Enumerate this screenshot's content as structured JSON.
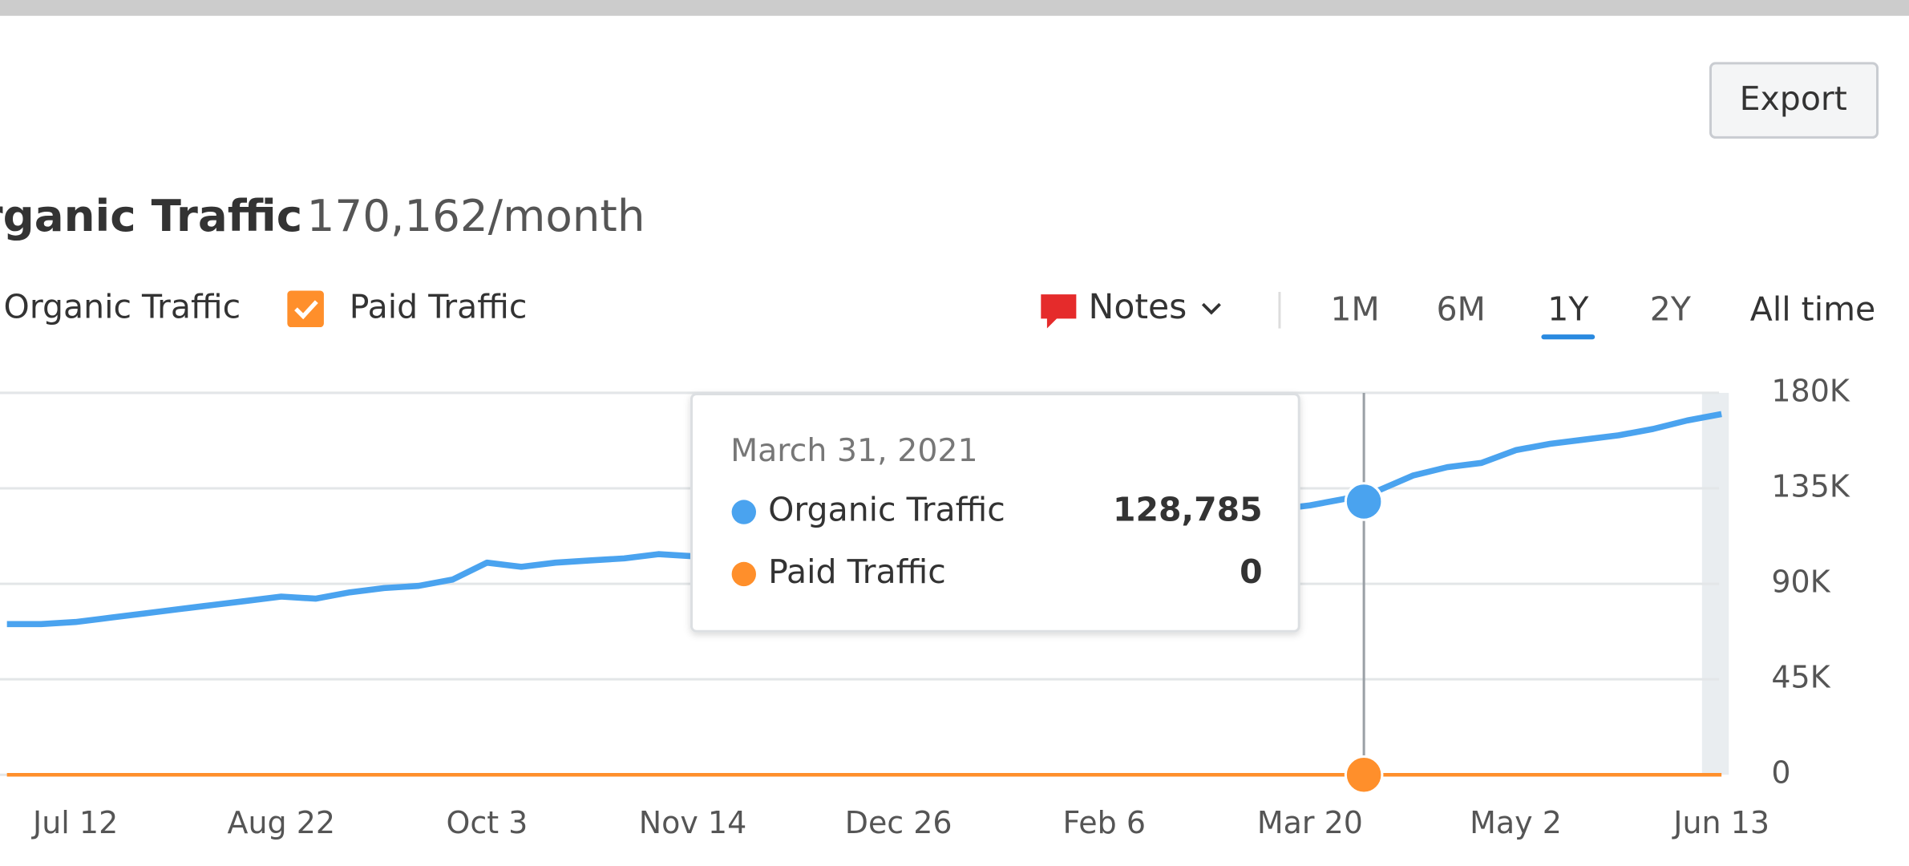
{
  "header": {
    "export": "Export"
  },
  "toolbar": {
    "notes": "Notes",
    "ranges": [
      "1M",
      "6M",
      "1Y",
      "2Y",
      "All time"
    ],
    "selected_range": 2
  },
  "chart_data": {
    "type": "line",
    "title": "Organic Traffic",
    "subtitle": "170,162/month",
    "categories": [
      null,
      null,
      "Jul 12",
      null,
      null,
      null,
      null,
      null,
      "Aug 22",
      null,
      null,
      null,
      null,
      null,
      "Oct 3",
      null,
      null,
      null,
      null,
      null,
      "Nov 14",
      null,
      null,
      null,
      null,
      null,
      "Dec 26",
      null,
      null,
      null,
      null,
      null,
      "Feb 6",
      null,
      null,
      null,
      null,
      null,
      "Mar 20",
      null,
      null,
      null,
      null,
      null,
      "May 2",
      null,
      null,
      null,
      null,
      null,
      "Jun 13"
    ],
    "series": [
      {
        "name": "Organic Traffic",
        "color": "#4aa3ef",
        "values": [
          71000,
          71000,
          72000,
          74000,
          76000,
          78000,
          80000,
          82000,
          84000,
          83000,
          86000,
          88000,
          89000,
          92000,
          100000,
          98000,
          100000,
          101000,
          102000,
          104000,
          103000,
          104000,
          105000,
          106000,
          107000,
          108000,
          110000,
          111000,
          112000,
          113000,
          115000,
          116000,
          118000,
          119000,
          120000,
          122000,
          123000,
          125000,
          127000,
          130000,
          134000,
          141000,
          145000,
          147000,
          153000,
          156000,
          158000,
          160000,
          163000,
          167000,
          170000
        ]
      },
      {
        "name": "Paid Traffic",
        "color": "#ff8f2b",
        "values": [
          0,
          0,
          0,
          0,
          0,
          0,
          0,
          0,
          0,
          0,
          0,
          0,
          0,
          0,
          0,
          0,
          0,
          0,
          0,
          0,
          0,
          0,
          0,
          0,
          0,
          0,
          0,
          0,
          0,
          0,
          0,
          0,
          0,
          0,
          0,
          0,
          0,
          0,
          0,
          0,
          0,
          0,
          0,
          0,
          0,
          0,
          0,
          0,
          0,
          0,
          0
        ]
      }
    ],
    "ylim": [
      0,
      180000
    ],
    "yticks": [
      0,
      {
        "value": 45000,
        "label": "45K"
      },
      {
        "value": 90000,
        "label": "90K"
      },
      {
        "value": 135000,
        "label": "135K"
      },
      {
        "value": 180000,
        "label": "180K"
      }
    ],
    "grid": true,
    "tooltip": {
      "title": "March 31, 2021",
      "values": [
        128785,
        0
      ],
      "value_labels": [
        "128,785",
        "0"
      ]
    }
  }
}
